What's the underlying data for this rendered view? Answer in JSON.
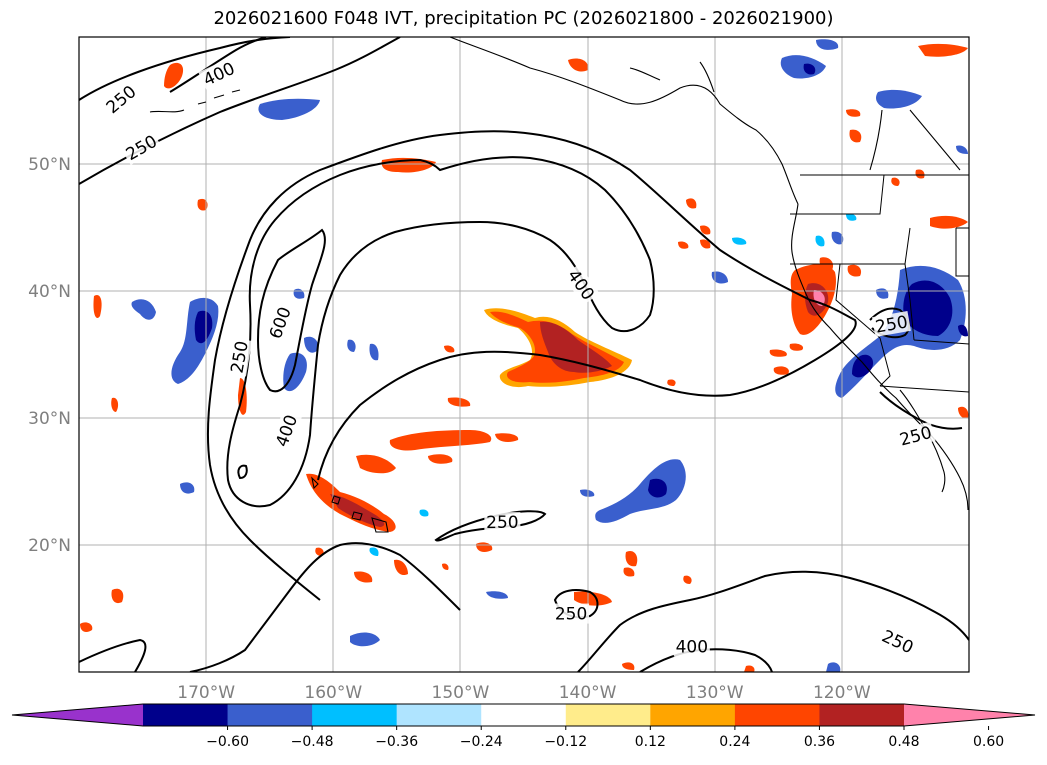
{
  "title": "2026021600 F048 IVT, precipitation PC (2026021800 - 2026021900)",
  "map": {
    "lon_range": [
      -180,
      -110
    ],
    "lat_range": [
      10,
      60
    ],
    "lon_ticks": [
      {
        "lon": -170,
        "label": "170°W"
      },
      {
        "lon": -160,
        "label": "160°W"
      },
      {
        "lon": -150,
        "label": "150°W"
      },
      {
        "lon": -140,
        "label": "140°W"
      },
      {
        "lon": -130,
        "label": "130°W"
      },
      {
        "lon": -120,
        "label": "120°W"
      }
    ],
    "lat_ticks": [
      {
        "lat": 20,
        "label": "20°N"
      },
      {
        "lat": 30,
        "label": "30°N"
      },
      {
        "lat": 40,
        "label": "40°N"
      },
      {
        "lat": 50,
        "label": "50°N"
      }
    ],
    "contour_labels": [
      {
        "text": "250",
        "lon": -176.7,
        "lat": 55.1,
        "angle": -40
      },
      {
        "text": "400",
        "lon": -169.0,
        "lat": 57.1,
        "angle": -25
      },
      {
        "text": "250",
        "lon": -175.1,
        "lat": 51.3,
        "angle": -30
      },
      {
        "text": "600",
        "lon": -164.2,
        "lat": 37.5,
        "angle": -70
      },
      {
        "text": "250",
        "lon": -167.4,
        "lat": 34.8,
        "angle": -80
      },
      {
        "text": "400",
        "lon": -163.7,
        "lat": 29.0,
        "angle": -70
      },
      {
        "text": "400",
        "lon": -140.5,
        "lat": 40.5,
        "angle": 55
      },
      {
        "text": "250",
        "lon": -146.7,
        "lat": 21.8,
        "angle": 0
      },
      {
        "text": "250",
        "lon": -141.3,
        "lat": 14.6,
        "angle": 0
      },
      {
        "text": "400",
        "lon": -131.8,
        "lat": 12.0,
        "angle": 0
      },
      {
        "text": "250",
        "lon": -115.6,
        "lat": 12.4,
        "angle": 25
      },
      {
        "text": "250",
        "lon": -116.1,
        "lat": 37.4,
        "angle": -10
      },
      {
        "text": "250",
        "lon": -114.2,
        "lat": 28.6,
        "angle": -15
      }
    ]
  },
  "colorbar": {
    "colors": [
      "#9932cc",
      "#00008b",
      "#3a5fcd",
      "#00bfff",
      "#afe4ff",
      "#ffffff",
      "#ffec8b",
      "#ffa500",
      "#ff4500",
      "#b22222",
      "#ff82ab"
    ],
    "tick_labels": [
      "−0.60",
      "−0.48",
      "−0.36",
      "−0.24",
      "−0.12",
      "0.12",
      "0.24",
      "0.36",
      "0.48",
      "0.60"
    ]
  }
}
